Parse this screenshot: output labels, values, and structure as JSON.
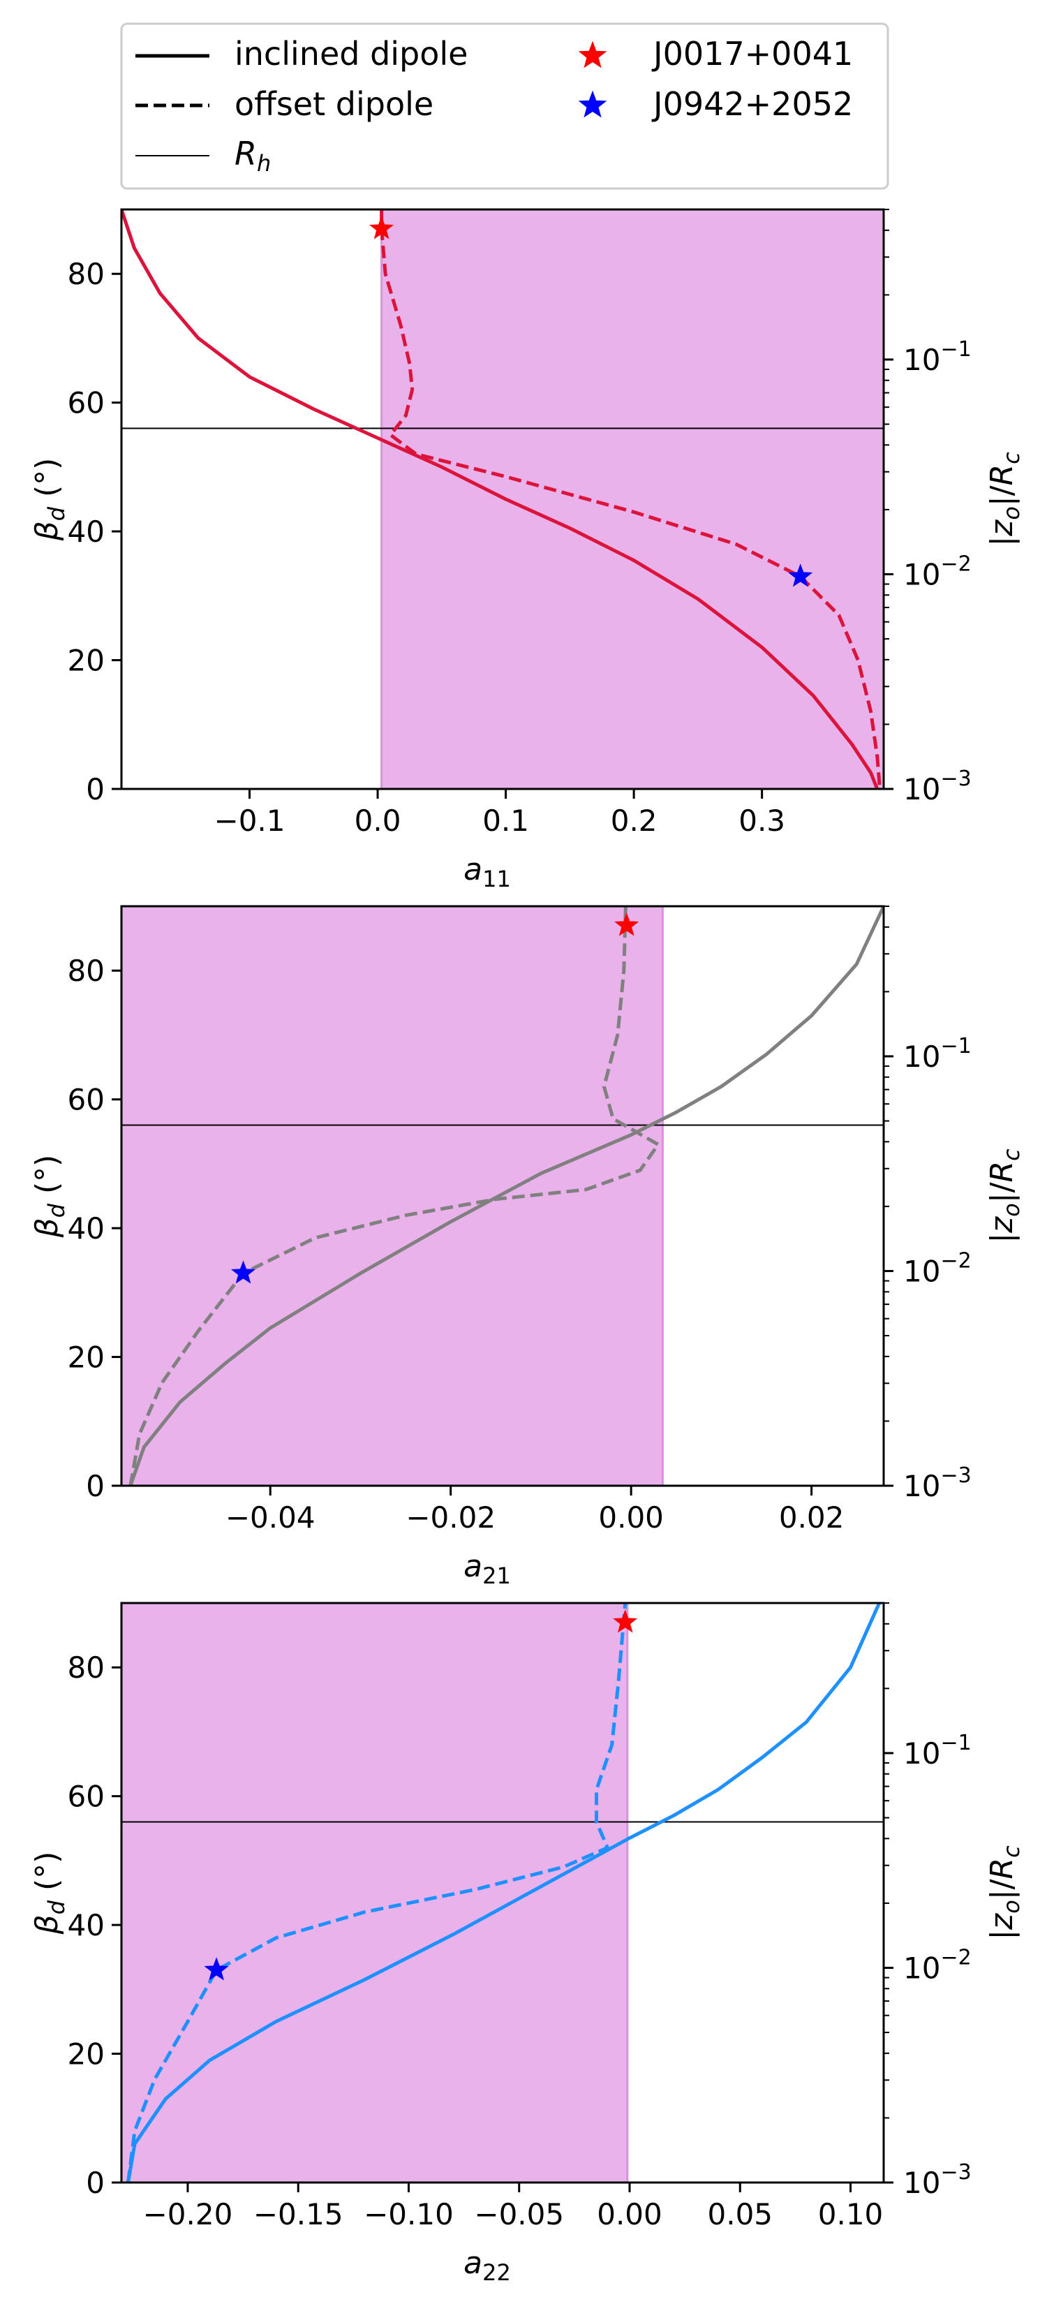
{
  "legend": {
    "placement": "top",
    "entries": [
      {
        "label": "inclined dipole",
        "style": "solid-thick"
      },
      {
        "label": "offset dipole",
        "style": "dashed"
      },
      {
        "label": "R_h",
        "style": "solid-thin"
      },
      {
        "label": "J0017+0041",
        "style": "star",
        "color": "#ff0000"
      },
      {
        "label": "J0942+2052",
        "style": "star",
        "color": "#0000ff"
      }
    ]
  },
  "colors": {
    "shade": "#e9b2ea",
    "shade_edge": "#d992de",
    "rh_line": "#000000"
  },
  "chart_data": [
    {
      "type": "line",
      "xlabel": "a_11",
      "ylabel": "β_d (°)",
      "y2label": "|z_o|/R_c",
      "color": "#dc143c",
      "xlim": [
        -0.2,
        0.395
      ],
      "ylim": [
        0,
        90
      ],
      "xticks": [
        -0.1,
        0.0,
        0.1,
        0.2,
        0.3
      ],
      "xticklabels": [
        "−0.1",
        "0.0",
        "0.1",
        "0.2",
        "0.3"
      ],
      "yticks": [
        0,
        20,
        40,
        60,
        80
      ],
      "y2_scale": "log",
      "y2ticks": [
        {
          "value": 0.001,
          "base": "10",
          "exp": "−3"
        },
        {
          "value": 0.01,
          "base": "10",
          "exp": "−2"
        },
        {
          "value": 0.1,
          "base": "10",
          "exp": "−1"
        }
      ],
      "y2lim": [
        0.001,
        0.5
      ],
      "shade_x": [
        0.003,
        0.395
      ],
      "rh_y": 56,
      "series": [
        {
          "name": "inclined dipole",
          "style": "solid",
          "points": [
            [
              -0.2,
              90
            ],
            [
              -0.19,
              84
            ],
            [
              -0.17,
              77
            ],
            [
              -0.14,
              70
            ],
            [
              -0.1,
              64
            ],
            [
              -0.05,
              59
            ],
            [
              0.0,
              54.5
            ],
            [
              0.05,
              50
            ],
            [
              0.1,
              45
            ],
            [
              0.15,
              40.5
            ],
            [
              0.2,
              35.5
            ],
            [
              0.25,
              29.5
            ],
            [
              0.3,
              22
            ],
            [
              0.34,
              14.5
            ],
            [
              0.37,
              7
            ],
            [
              0.385,
              2.5
            ],
            [
              0.39,
              0
            ]
          ]
        },
        {
          "name": "offset dipole",
          "style": "dashed",
          "points": [
            [
              0.003,
              90
            ],
            [
              0.003,
              87
            ],
            [
              0.006,
              80
            ],
            [
              0.018,
              72
            ],
            [
              0.025,
              66
            ],
            [
              0.027,
              62
            ],
            [
              0.022,
              58
            ],
            [
              0.01,
              55
            ],
            [
              0.03,
              52
            ],
            [
              0.1,
              48.5
            ],
            [
              0.2,
              43
            ],
            [
              0.28,
              38
            ],
            [
              0.33,
              33
            ],
            [
              0.36,
              27
            ],
            [
              0.375,
              20
            ],
            [
              0.385,
              12
            ],
            [
              0.39,
              5
            ],
            [
              0.392,
              0
            ]
          ]
        }
      ],
      "stars": [
        {
          "name": "J0017+0041",
          "x": 0.003,
          "y": 87,
          "color": "#ff0000"
        },
        {
          "name": "J0942+2052",
          "x": 0.33,
          "y": 33,
          "color": "#0000ff"
        }
      ]
    },
    {
      "type": "line",
      "xlabel": "a_21",
      "ylabel": "β_d (°)",
      "y2label": "|z_o|/R_c",
      "color": "#808080",
      "xlim": [
        -0.0565,
        0.028
      ],
      "ylim": [
        0,
        90
      ],
      "xticks": [
        -0.04,
        -0.02,
        0.0,
        0.02
      ],
      "xticklabels": [
        "−0.04",
        "−0.02",
        "0.00",
        "0.02"
      ],
      "yticks": [
        0,
        20,
        40,
        60,
        80
      ],
      "y2_scale": "log",
      "y2ticks": [
        {
          "value": 0.001,
          "base": "10",
          "exp": "−3"
        },
        {
          "value": 0.01,
          "base": "10",
          "exp": "−2"
        },
        {
          "value": 0.1,
          "base": "10",
          "exp": "−1"
        }
      ],
      "y2lim": [
        0.001,
        0.5
      ],
      "shade_x": [
        -0.0565,
        0.0035
      ],
      "rh_y": 56,
      "series": [
        {
          "name": "inclined dipole",
          "style": "solid",
          "points": [
            [
              -0.0555,
              0
            ],
            [
              -0.054,
              6
            ],
            [
              -0.05,
              13
            ],
            [
              -0.045,
              19
            ],
            [
              -0.04,
              24.5
            ],
            [
              -0.03,
              33
            ],
            [
              -0.02,
              41
            ],
            [
              -0.01,
              48.5
            ],
            [
              0.0,
              54.5
            ],
            [
              0.005,
              58
            ],
            [
              0.01,
              62
            ],
            [
              0.015,
              67
            ],
            [
              0.02,
              73
            ],
            [
              0.025,
              81
            ],
            [
              0.028,
              90
            ]
          ]
        },
        {
          "name": "offset dipole",
          "style": "dashed",
          "points": [
            [
              -0.0555,
              0
            ],
            [
              -0.0545,
              8
            ],
            [
              -0.052,
              16
            ],
            [
              -0.048,
              24
            ],
            [
              -0.043,
              33
            ],
            [
              -0.035,
              38.5
            ],
            [
              -0.025,
              42
            ],
            [
              -0.015,
              44.5
            ],
            [
              -0.005,
              46
            ],
            [
              0.001,
              49
            ],
            [
              0.003,
              53
            ],
            [
              -0.002,
              57
            ],
            [
              -0.003,
              62
            ],
            [
              -0.0015,
              70
            ],
            [
              -0.0008,
              80
            ],
            [
              -0.0006,
              90
            ]
          ]
        }
      ],
      "stars": [
        {
          "name": "J0017+0041",
          "x": -0.0005,
          "y": 87,
          "color": "#ff0000"
        },
        {
          "name": "J0942+2052",
          "x": -0.043,
          "y": 33,
          "color": "#0000ff"
        }
      ]
    },
    {
      "type": "line",
      "xlabel": "a_22",
      "ylabel": "β_d (°)",
      "y2label": "|z_o|/R_c",
      "color": "#1e90ff",
      "xlim": [
        -0.23,
        0.115
      ],
      "ylim": [
        0,
        90
      ],
      "xticks": [
        -0.2,
        -0.15,
        -0.1,
        -0.05,
        0.0,
        0.05,
        0.1
      ],
      "xticklabels": [
        "−0.20",
        "−0.15",
        "−0.10",
        "−0.05",
        "0.00",
        "0.05",
        "0.10"
      ],
      "yticks": [
        0,
        20,
        40,
        60,
        80
      ],
      "y2_scale": "log",
      "y2ticks": [
        {
          "value": 0.001,
          "base": "10",
          "exp": "−3"
        },
        {
          "value": 0.01,
          "base": "10",
          "exp": "−2"
        },
        {
          "value": 0.1,
          "base": "10",
          "exp": "−1"
        }
      ],
      "y2lim": [
        0.001,
        0.5
      ],
      "shade_x": [
        -0.23,
        -0.001
      ],
      "rh_y": 56,
      "series": [
        {
          "name": "inclined dipole",
          "style": "solid",
          "points": [
            [
              -0.227,
              0
            ],
            [
              -0.224,
              6
            ],
            [
              -0.21,
              13
            ],
            [
              -0.19,
              19
            ],
            [
              -0.16,
              25
            ],
            [
              -0.12,
              31.5
            ],
            [
              -0.08,
              38.5
            ],
            [
              -0.04,
              46
            ],
            [
              0.0,
              53.5
            ],
            [
              0.02,
              57
            ],
            [
              0.04,
              61
            ],
            [
              0.06,
              66
            ],
            [
              0.08,
              71.5
            ],
            [
              0.1,
              80
            ],
            [
              0.113,
              90
            ]
          ]
        },
        {
          "name": "offset dipole",
          "style": "dashed",
          "points": [
            [
              -0.227,
              0
            ],
            [
              -0.224,
              8
            ],
            [
              -0.215,
              16
            ],
            [
              -0.2,
              25
            ],
            [
              -0.187,
              33
            ],
            [
              -0.16,
              38
            ],
            [
              -0.12,
              42
            ],
            [
              -0.07,
              45.5
            ],
            [
              -0.03,
              49
            ],
            [
              -0.01,
              52
            ],
            [
              -0.015,
              56
            ],
            [
              -0.015,
              61
            ],
            [
              -0.008,
              68
            ],
            [
              -0.005,
              78
            ],
            [
              -0.002,
              90
            ]
          ]
        }
      ],
      "stars": [
        {
          "name": "J0017+0041",
          "x": -0.002,
          "y": 87,
          "color": "#ff0000"
        },
        {
          "name": "J0942+2052",
          "x": -0.187,
          "y": 33,
          "color": "#0000ff"
        }
      ]
    }
  ]
}
